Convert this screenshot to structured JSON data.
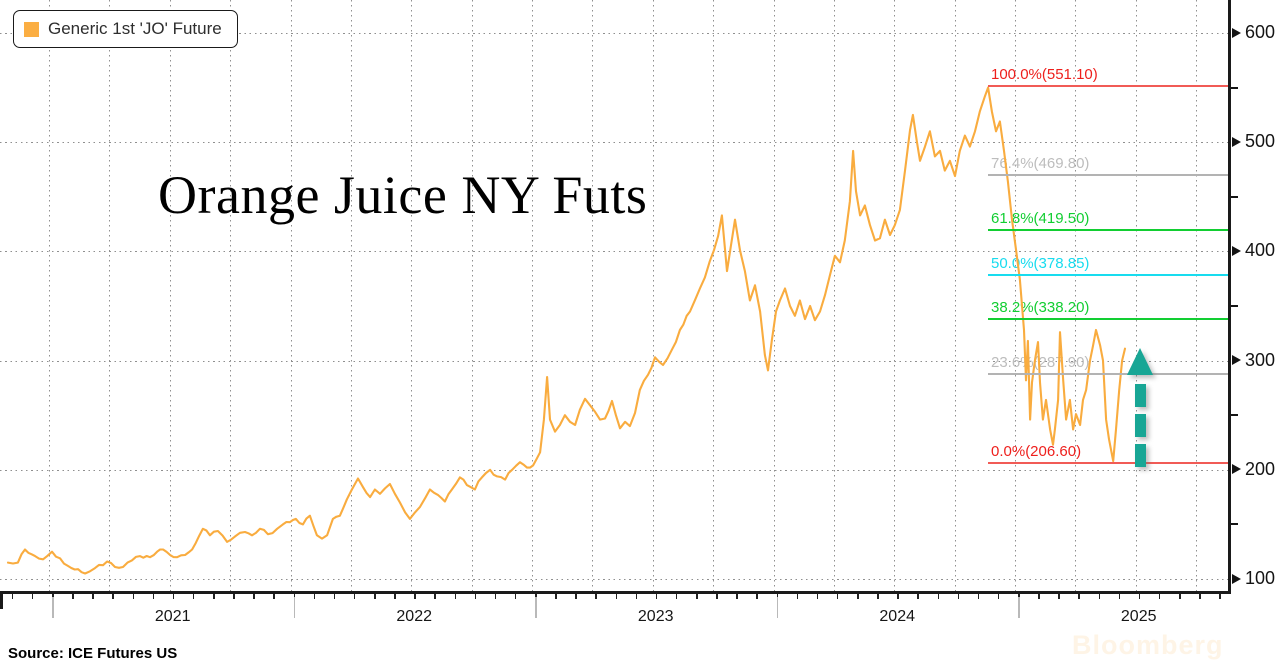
{
  "legend": {
    "label": "Generic 1st 'JO' Future",
    "swatch_color": "#FBAE42"
  },
  "footer": {
    "source": "Source: ICE Futures US",
    "watermark": "Bloomberg"
  },
  "chart_data": {
    "type": "line",
    "title": "Orange Juice NY Futs",
    "grid": "dotted",
    "y_axis": {
      "side": "right",
      "ticks": [
        600,
        500,
        400,
        300,
        200,
        100
      ],
      "minor_ticks": [
        550,
        450,
        350,
        250,
        150
      ],
      "range_shown": [
        88,
        630
      ]
    },
    "x_axis": {
      "years": [
        2021,
        2022,
        2023,
        2024,
        2025
      ],
      "minor_tick_interval": "month",
      "grid_interval": "quarter"
    },
    "fibonacci_levels": [
      {
        "label": "100.0%(551.10)",
        "pct": 100.0,
        "price": 551.1,
        "text_color": "#EE1F1C",
        "line_color": "#F15B56"
      },
      {
        "label": "76.4%(469.80)",
        "pct": 76.4,
        "price": 469.8,
        "text_color": "#BDBDBD",
        "line_color": "#B3B3B3"
      },
      {
        "label": "61.8%(419.50)",
        "pct": 61.8,
        "price": 419.5,
        "text_color": "#12CE32",
        "line_color": "#12CE32"
      },
      {
        "label": "50.0%(378.85)",
        "pct": 50.0,
        "price": 378.85,
        "text_color": "#18DCEF",
        "line_color": "#18DCEF"
      },
      {
        "label": "38.2%(338.20)",
        "pct": 38.2,
        "price": 338.2,
        "text_color": "#12CE32",
        "line_color": "#12CE32"
      },
      {
        "label": "23.6%(287.90)",
        "pct": 23.6,
        "price": 287.9,
        "text_color": "#BDBDBD",
        "line_color": "#B3B3B3"
      },
      {
        "label": "0.0%(206.60)",
        "pct": 0.0,
        "price": 206.6,
        "text_color": "#EE1F1C",
        "line_color": "#F15B56"
      }
    ],
    "annotations": {
      "up_arrow": {
        "color": "#18A695",
        "at_year": 2025.5,
        "from_price": 215,
        "to_price": 320
      }
    },
    "series": [
      {
        "name": "Generic 1st 'JO' Future",
        "color": "#F9AC3F",
        "points": [
          [
            2020.818,
            115
          ],
          [
            2020.859,
            115
          ],
          [
            2020.888,
            127
          ],
          [
            2020.93,
            121
          ],
          [
            2020.963,
            118
          ],
          [
            2021.0,
            125
          ],
          [
            2021.033,
            119
          ],
          [
            2021.066,
            112
          ],
          [
            2021.108,
            109
          ],
          [
            2021.137,
            105
          ],
          [
            2021.178,
            110
          ],
          [
            2021.228,
            116
          ],
          [
            2021.261,
            111
          ],
          [
            2021.294,
            111
          ],
          [
            2021.331,
            117
          ],
          [
            2021.364,
            121
          ],
          [
            2021.406,
            120
          ],
          [
            2021.435,
            125
          ],
          [
            2021.46,
            127
          ],
          [
            2021.489,
            122
          ],
          [
            2021.518,
            120
          ],
          [
            2021.551,
            122
          ],
          [
            2021.58,
            127
          ],
          [
            2021.625,
            146
          ],
          [
            2021.654,
            140
          ],
          [
            2021.687,
            144
          ],
          [
            2021.725,
            134
          ],
          [
            2021.758,
            139
          ],
          [
            2021.799,
            143
          ],
          [
            2021.828,
            140
          ],
          [
            2021.861,
            146
          ],
          [
            2021.894,
            141
          ],
          [
            2021.932,
            146
          ],
          [
            2021.956,
            150
          ],
          [
            2021.985,
            152
          ],
          [
            2022.01,
            155
          ],
          [
            2022.039,
            150
          ],
          [
            2022.068,
            158
          ],
          [
            2022.097,
            140
          ],
          [
            2022.118,
            137
          ],
          [
            2022.139,
            140
          ],
          [
            2022.163,
            155
          ],
          [
            2022.192,
            158
          ],
          [
            2022.221,
            173
          ],
          [
            2022.242,
            182
          ],
          [
            2022.267,
            192
          ],
          [
            2022.288,
            184
          ],
          [
            2022.317,
            175
          ],
          [
            2022.337,
            182
          ],
          [
            2022.358,
            178
          ],
          [
            2022.379,
            183
          ],
          [
            2022.399,
            187
          ],
          [
            2022.42,
            178
          ],
          [
            2022.441,
            170
          ],
          [
            2022.462,
            161
          ],
          [
            2022.482,
            155
          ],
          [
            2022.503,
            161
          ],
          [
            2022.524,
            166
          ],
          [
            2022.545,
            174
          ],
          [
            2022.565,
            182
          ],
          [
            2022.598,
            177
          ],
          [
            2022.627,
            171
          ],
          [
            2022.656,
            182
          ],
          [
            2022.689,
            193
          ],
          [
            2022.718,
            186
          ],
          [
            2022.751,
            182
          ],
          [
            2022.78,
            193
          ],
          [
            2022.814,
            200
          ],
          [
            2022.843,
            194
          ],
          [
            2022.876,
            191
          ],
          [
            2022.905,
            200
          ],
          [
            2022.938,
            207
          ],
          [
            2022.967,
            202
          ],
          [
            2022.992,
            204
          ],
          [
            2023.021,
            216
          ],
          [
            2023.037,
            246
          ],
          [
            2023.05,
            285
          ],
          [
            2023.062,
            246
          ],
          [
            2023.083,
            235
          ],
          [
            2023.103,
            241
          ],
          [
            2023.124,
            250
          ],
          [
            2023.145,
            244
          ],
          [
            2023.166,
            241
          ],
          [
            2023.186,
            255
          ],
          [
            2023.207,
            265
          ],
          [
            2023.228,
            259
          ],
          [
            2023.249,
            253
          ],
          [
            2023.269,
            246
          ],
          [
            2023.29,
            247
          ],
          [
            2023.319,
            263
          ],
          [
            2023.335,
            250
          ],
          [
            2023.352,
            238
          ],
          [
            2023.373,
            244
          ],
          [
            2023.393,
            240
          ],
          [
            2023.414,
            252
          ],
          [
            2023.434,
            273
          ],
          [
            2023.468,
            287
          ],
          [
            2023.497,
            303
          ],
          [
            2023.53,
            296
          ],
          [
            2023.567,
            310
          ],
          [
            2023.6,
            328
          ],
          [
            2023.642,
            345
          ],
          [
            2023.683,
            366
          ],
          [
            2023.724,
            391
          ],
          [
            2023.758,
            414
          ],
          [
            2023.774,
            433
          ],
          [
            2023.795,
            382
          ],
          [
            2023.811,
            405
          ],
          [
            2023.828,
            429
          ],
          [
            2023.849,
            401
          ],
          [
            2023.869,
            382
          ],
          [
            2023.89,
            355
          ],
          [
            2023.911,
            369
          ],
          [
            2023.932,
            345
          ],
          [
            2023.952,
            305
          ],
          [
            2023.965,
            291
          ],
          [
            2023.981,
            319
          ],
          [
            2023.998,
            345
          ],
          [
            2024.014,
            355
          ],
          [
            2024.035,
            366
          ],
          [
            2024.056,
            350
          ],
          [
            2024.076,
            341
          ],
          [
            2024.097,
            355
          ],
          [
            2024.118,
            338
          ],
          [
            2024.139,
            350
          ],
          [
            2024.159,
            337
          ],
          [
            2024.18,
            345
          ],
          [
            2024.201,
            360
          ],
          [
            2024.221,
            378
          ],
          [
            2024.242,
            396
          ],
          [
            2024.263,
            390
          ],
          [
            2024.283,
            410
          ],
          [
            2024.304,
            446
          ],
          [
            2024.317,
            492
          ],
          [
            2024.329,
            455
          ],
          [
            2024.346,
            433
          ],
          [
            2024.366,
            442
          ],
          [
            2024.387,
            424
          ],
          [
            2024.408,
            410
          ],
          [
            2024.428,
            412
          ],
          [
            2024.449,
            429
          ],
          [
            2024.47,
            415
          ],
          [
            2024.49,
            424
          ],
          [
            2024.511,
            438
          ],
          [
            2024.532,
            474
          ],
          [
            2024.553,
            511
          ],
          [
            2024.565,
            525
          ],
          [
            2024.581,
            501
          ],
          [
            2024.594,
            483
          ],
          [
            2024.615,
            496
          ],
          [
            2024.635,
            510
          ],
          [
            2024.656,
            487
          ],
          [
            2024.677,
            492
          ],
          [
            2024.697,
            474
          ],
          [
            2024.718,
            483
          ],
          [
            2024.739,
            469
          ],
          [
            2024.759,
            492
          ],
          [
            2024.78,
            506
          ],
          [
            2024.801,
            496
          ],
          [
            2024.822,
            510
          ],
          [
            2024.842,
            528
          ],
          [
            2024.863,
            542
          ],
          [
            2024.876,
            550
          ],
          [
            2024.892,
            528
          ],
          [
            2024.909,
            510
          ],
          [
            2024.925,
            519
          ],
          [
            2024.942,
            492
          ],
          [
            2024.958,
            464
          ],
          [
            2024.975,
            429
          ],
          [
            2024.992,
            401
          ],
          [
            2025.008,
            374
          ],
          [
            2025.025,
            328
          ],
          [
            2025.033,
            282
          ],
          [
            2025.041,
            318
          ],
          [
            2025.05,
            246
          ],
          [
            2025.058,
            280
          ],
          [
            2025.07,
            300
          ],
          [
            2025.083,
            317
          ],
          [
            2025.091,
            280
          ],
          [
            2025.103,
            246
          ],
          [
            2025.116,
            264
          ],
          [
            2025.133,
            237
          ],
          [
            2025.145,
            223
          ],
          [
            2025.153,
            237
          ],
          [
            2025.166,
            264
          ],
          [
            2025.174,
            326
          ],
          [
            2025.187,
            282
          ],
          [
            2025.199,
            246
          ],
          [
            2025.215,
            264
          ],
          [
            2025.228,
            237
          ],
          [
            2025.24,
            251
          ],
          [
            2025.257,
            241
          ],
          [
            2025.269,
            264
          ],
          [
            2025.282,
            273
          ],
          [
            2025.298,
            300
          ],
          [
            2025.311,
            314
          ],
          [
            2025.323,
            328
          ],
          [
            2025.34,
            314
          ],
          [
            2025.352,
            300
          ],
          [
            2025.365,
            246
          ],
          [
            2025.377,
            228
          ],
          [
            2025.394,
            208
          ],
          [
            2025.406,
            237
          ],
          [
            2025.419,
            273
          ],
          [
            2025.431,
            300
          ],
          [
            2025.443,
            311
          ]
        ]
      }
    ]
  }
}
